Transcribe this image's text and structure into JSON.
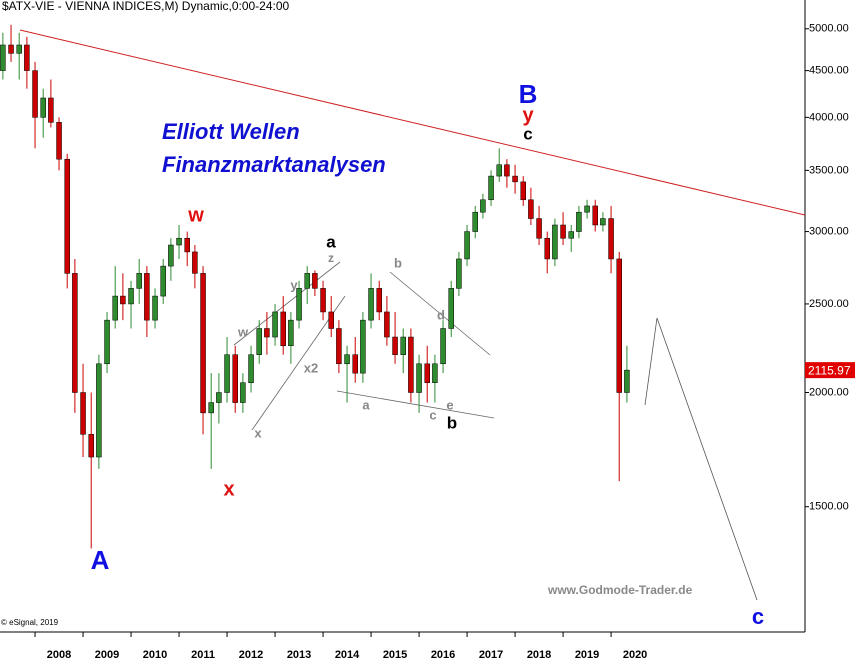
{
  "chart_data": {
    "type": "candlestick",
    "title": "$ATX-VIE - VIENNA INDICES,M) Dynamic,0:00-24:00",
    "headline": [
      "Elliott Wellen",
      "Finanzmarktanalysen"
    ],
    "watermark": "www.Godmode-Trader.de",
    "copyright": "© eSignal, 2019",
    "annotations": [
      "A",
      "w",
      "x",
      "a",
      "z",
      "y",
      "w",
      "x",
      "x2",
      "a",
      "b",
      "d",
      "c",
      "e",
      "b",
      "B",
      "y",
      "c",
      "c"
    ],
    "log_scale": true,
    "up_color": "#2e8b2e",
    "down_color": "#cc0000",
    "x": [
      2007.33,
      2007.5,
      2007.67,
      2007.83,
      2008.0,
      2008.17,
      2008.33,
      2008.5,
      2008.67,
      2008.83,
      2009.0,
      2009.17,
      2009.33,
      2009.5,
      2009.67,
      2009.83,
      2010.0,
      2010.17,
      2010.33,
      2010.5,
      2010.67,
      2010.83,
      2011.0,
      2011.17,
      2011.33,
      2011.5,
      2011.67,
      2011.83,
      2012.0,
      2012.17,
      2012.33,
      2012.5,
      2012.67,
      2012.83,
      2013.0,
      2013.17,
      2013.33,
      2013.5,
      2013.67,
      2013.83,
      2014.0,
      2014.17,
      2014.33,
      2014.5,
      2014.67,
      2014.83,
      2015.0,
      2015.17,
      2015.33,
      2015.5,
      2015.67,
      2015.83,
      2016.0,
      2016.17,
      2016.33,
      2016.5,
      2016.67,
      2016.83,
      2017.0,
      2017.17,
      2017.33,
      2017.5,
      2017.67,
      2017.83,
      2018.0,
      2018.17,
      2018.33,
      2018.5,
      2018.67,
      2018.83,
      2019.0,
      2019.17,
      2019.33,
      2019.5,
      2019.67,
      2019.83,
      2020.0,
      2020.17,
      2020.33
    ],
    "open": [
      4500,
      4800,
      4700,
      4800,
      4500,
      4000,
      4200,
      3950,
      3600,
      2700,
      2000,
      1800,
      1700,
      2150,
      2400,
      2550,
      2500,
      2600,
      2700,
      2400,
      2550,
      2750,
      2900,
      2950,
      2850,
      2700,
      1900,
      1950,
      2000,
      2200,
      1950,
      2050,
      2200,
      2350,
      2300,
      2450,
      2250,
      2400,
      2600,
      2700,
      2600,
      2450,
      2350,
      2150,
      2200,
      2100,
      2400,
      2600,
      2450,
      2300,
      2200,
      2300,
      2000,
      2150,
      2050,
      2150,
      2350,
      2600,
      2800,
      3000,
      3150,
      3250,
      3450,
      3550,
      3450,
      3400,
      3250,
      3100,
      2950,
      2800,
      3050,
      2950,
      3000,
      3150,
      3200,
      3050,
      3100,
      2800,
      2000
    ],
    "high": [
      4950,
      5050,
      4950,
      4900,
      4600,
      4300,
      4400,
      4000,
      3650,
      2800,
      2150,
      2000,
      2200,
      2450,
      2750,
      2700,
      2650,
      2800,
      2750,
      2600,
      2800,
      2950,
      3050,
      3000,
      2900,
      2750,
      2100,
      2100,
      2300,
      2250,
      2100,
      2250,
      2400,
      2450,
      2500,
      2550,
      2450,
      2650,
      2750,
      2720,
      2650,
      2550,
      2400,
      2250,
      2300,
      2450,
      2700,
      2650,
      2550,
      2450,
      2350,
      2350,
      2200,
      2250,
      2200,
      2400,
      2650,
      2850,
      3050,
      3200,
      3300,
      3500,
      3700,
      3600,
      3550,
      3450,
      3350,
      3200,
      3000,
      3100,
      3150,
      3050,
      3200,
      3250,
      3250,
      3150,
      3200,
      2850,
      2250
    ],
    "low": [
      4400,
      4600,
      4400,
      4300,
      3700,
      3800,
      3900,
      3500,
      2600,
      1900,
      1700,
      1350,
      1650,
      2100,
      2350,
      2400,
      2350,
      2500,
      2300,
      2350,
      2500,
      2650,
      2800,
      2750,
      2600,
      1800,
      1650,
      1850,
      1950,
      1900,
      1900,
      2000,
      2150,
      2200,
      2250,
      2200,
      2150,
      2350,
      2500,
      2550,
      2400,
      2300,
      2100,
      1950,
      2050,
      2050,
      2350,
      2400,
      2250,
      2150,
      2100,
      1950,
      1900,
      1950,
      1950,
      2100,
      2300,
      2550,
      2750,
      2950,
      3100,
      3200,
      3400,
      3350,
      3300,
      3200,
      3050,
      2900,
      2700,
      2750,
      2900,
      2850,
      2950,
      3100,
      3000,
      3000,
      2700,
      1600,
      1950
    ],
    "close": [
      4800,
      4700,
      4800,
      4500,
      4000,
      4200,
      3950,
      3600,
      2700,
      2000,
      1800,
      1700,
      2150,
      2400,
      2550,
      2500,
      2600,
      2700,
      2400,
      2550,
      2750,
      2900,
      2950,
      2850,
      2700,
      1900,
      1950,
      2000,
      2200,
      1950,
      2050,
      2200,
      2350,
      2300,
      2450,
      2250,
      2400,
      2600,
      2700,
      2600,
      2450,
      2350,
      2150,
      2200,
      2100,
      2400,
      2600,
      2450,
      2300,
      2200,
      2300,
      2000,
      2150,
      2050,
      2150,
      2350,
      2600,
      2800,
      3000,
      3150,
      3250,
      3450,
      3550,
      3450,
      3400,
      3250,
      3100,
      2950,
      2800,
      3050,
      2950,
      3000,
      3150,
      3200,
      3050,
      3100,
      2800,
      2000,
      2115.97
    ],
    "xlim": [
      2007.27,
      2024.04
    ],
    "xticks": [
      2008,
      2009,
      2010,
      2011,
      2012,
      2013,
      2014,
      2015,
      2016,
      2017,
      2018,
      2019,
      2020
    ],
    "ylim": [
      1094,
      5376
    ],
    "yticks": [
      {
        "value": 5000,
        "label": "5000.00"
      },
      {
        "value": 4500,
        "label": "4500.00"
      },
      {
        "value": 4000,
        "label": "4000.00"
      },
      {
        "value": 3500,
        "label": "3500.00"
      },
      {
        "value": 3000,
        "label": "3000.00"
      },
      {
        "value": 2500,
        "label": "2500.00"
      },
      {
        "value": 2000,
        "label": "2000.00"
      },
      {
        "value": 1500,
        "label": "1500.00"
      }
    ]
  }
}
